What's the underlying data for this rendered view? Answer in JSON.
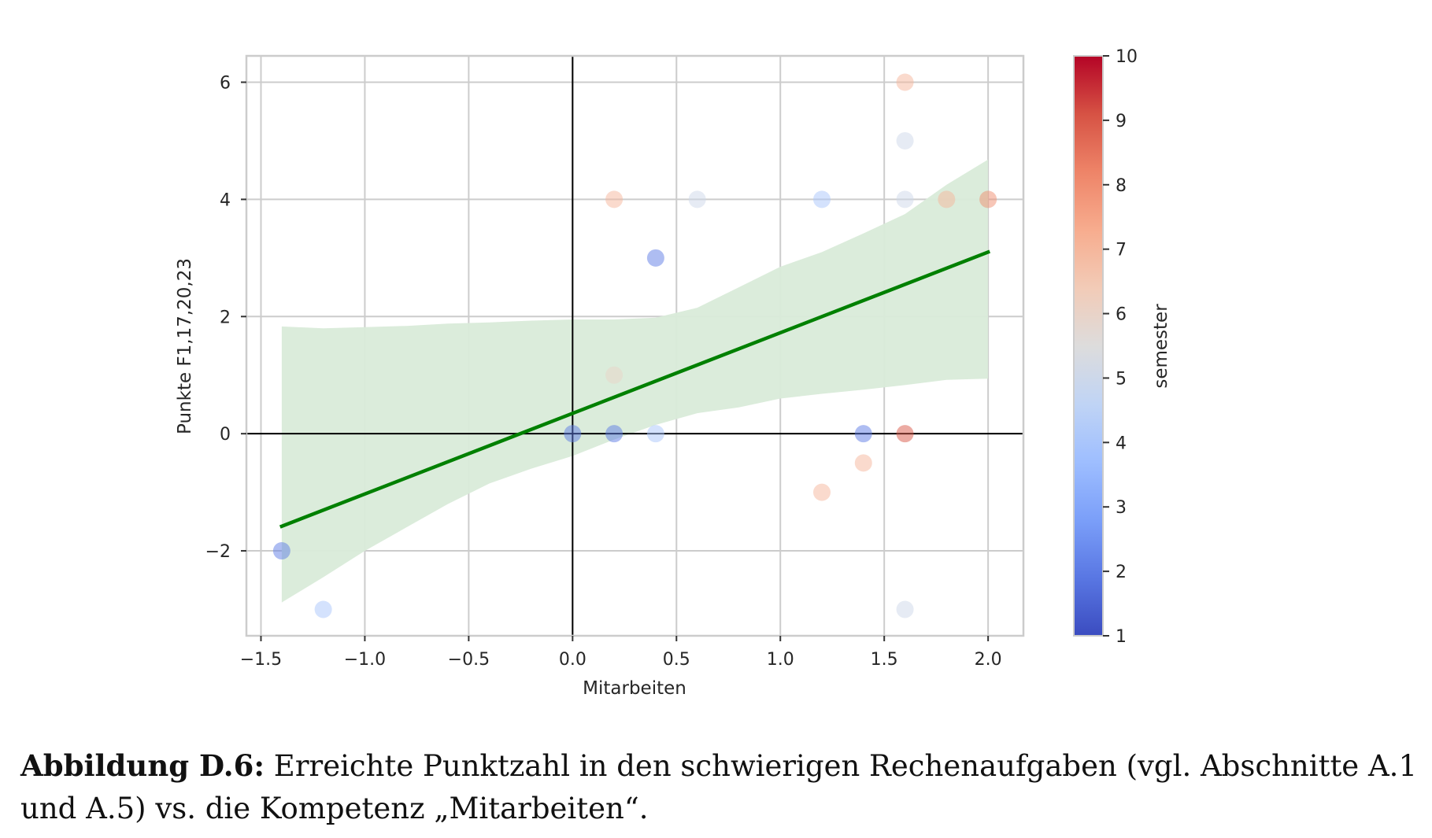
{
  "chart_data": {
    "type": "scatter",
    "title": "",
    "xlabel": "Mitarbeiten",
    "ylabel": "Punkte F1,17,20,23",
    "xlim": [
      -1.57,
      2.17
    ],
    "ylim": [
      -3.45,
      6.45
    ],
    "xticks": [
      -1.5,
      -1.0,
      -0.5,
      0.0,
      0.5,
      1.0,
      1.5,
      2.0
    ],
    "xtick_labels": [
      "−1.5",
      "−1.0",
      "−0.5",
      "0.0",
      "0.5",
      "1.0",
      "1.5",
      "2.0"
    ],
    "yticks": [
      -2,
      0,
      2,
      4,
      6
    ],
    "ytick_labels": [
      "−2",
      "0",
      "2",
      "4",
      "6"
    ],
    "grid": true,
    "reference_lines": {
      "x": 0,
      "y": 0
    },
    "points": [
      {
        "x": -1.4,
        "y": -2,
        "semester": 2
      },
      {
        "x": -1.2,
        "y": -3,
        "semester": 4
      },
      {
        "x": 0.0,
        "y": 0,
        "semester": 2
      },
      {
        "x": 0.2,
        "y": 0,
        "semester": 2
      },
      {
        "x": 0.2,
        "y": 1,
        "semester": 6
      },
      {
        "x": 0.2,
        "y": 4,
        "semester": 7
      },
      {
        "x": 0.4,
        "y": 0,
        "semester": 4
      },
      {
        "x": 0.4,
        "y": 3,
        "semester": 2
      },
      {
        "x": 0.6,
        "y": 4,
        "semester": 5
      },
      {
        "x": 1.2,
        "y": 4,
        "semester": 4
      },
      {
        "x": 1.2,
        "y": -1,
        "semester": 7
      },
      {
        "x": 1.4,
        "y": 0,
        "semester": 2
      },
      {
        "x": 1.4,
        "y": -0.5,
        "semester": 7
      },
      {
        "x": 1.6,
        "y": 0,
        "semester": 9
      },
      {
        "x": 1.6,
        "y": 6,
        "semester": 7
      },
      {
        "x": 1.6,
        "y": 5,
        "semester": 5
      },
      {
        "x": 1.6,
        "y": 4,
        "semester": 5
      },
      {
        "x": 1.6,
        "y": -3,
        "semester": 5
      },
      {
        "x": 1.8,
        "y": 4,
        "semester": 7
      },
      {
        "x": 2.0,
        "y": 4,
        "semester": 8
      }
    ],
    "regression": {
      "x": [
        -1.4,
        2.0
      ],
      "y": [
        -1.58,
        3.1
      ],
      "color": "#008000"
    },
    "confidence_band": {
      "x": [
        -1.4,
        -1.2,
        -1.0,
        -0.8,
        -0.6,
        -0.4,
        -0.2,
        0.0,
        0.2,
        0.4,
        0.6,
        0.8,
        1.0,
        1.2,
        1.4,
        1.6,
        1.8,
        2.0
      ],
      "lower": [
        -2.88,
        -2.45,
        -2.0,
        -1.6,
        -1.2,
        -0.85,
        -0.6,
        -0.38,
        -0.1,
        0.15,
        0.35,
        0.45,
        0.6,
        0.68,
        0.75,
        0.83,
        0.92,
        0.94
      ],
      "upper": [
        1.83,
        1.8,
        1.82,
        1.84,
        1.88,
        1.9,
        1.93,
        1.95,
        1.95,
        1.98,
        2.15,
        2.5,
        2.85,
        3.1,
        3.42,
        3.75,
        4.25,
        4.68
      ],
      "color": "#d9ebd9"
    },
    "colorbar": {
      "label": "semester",
      "min": 1,
      "max": 10,
      "ticks": [
        1,
        2,
        3,
        4,
        5,
        6,
        7,
        8,
        9,
        10
      ],
      "tick_labels": [
        "1",
        "2",
        "3",
        "4",
        "5",
        "6",
        "7",
        "8",
        "9",
        "10"
      ],
      "colormap": "coolwarm",
      "stops": [
        "#3b4cc0",
        "#5977e3",
        "#7b9ff9",
        "#9ebeff",
        "#c0d4f5",
        "#dddcdc",
        "#f2cbb7",
        "#f7ac8e",
        "#ee8468",
        "#d65244",
        "#b40426"
      ]
    }
  },
  "caption": {
    "label": "Abbildung D.6:",
    "text": " Erreichte Punktzahl in den schwierigen Rechenaufgaben (vgl. Abschnitte A.1 und A.5) vs. die Kompetenz „Mitarbeiten“."
  }
}
